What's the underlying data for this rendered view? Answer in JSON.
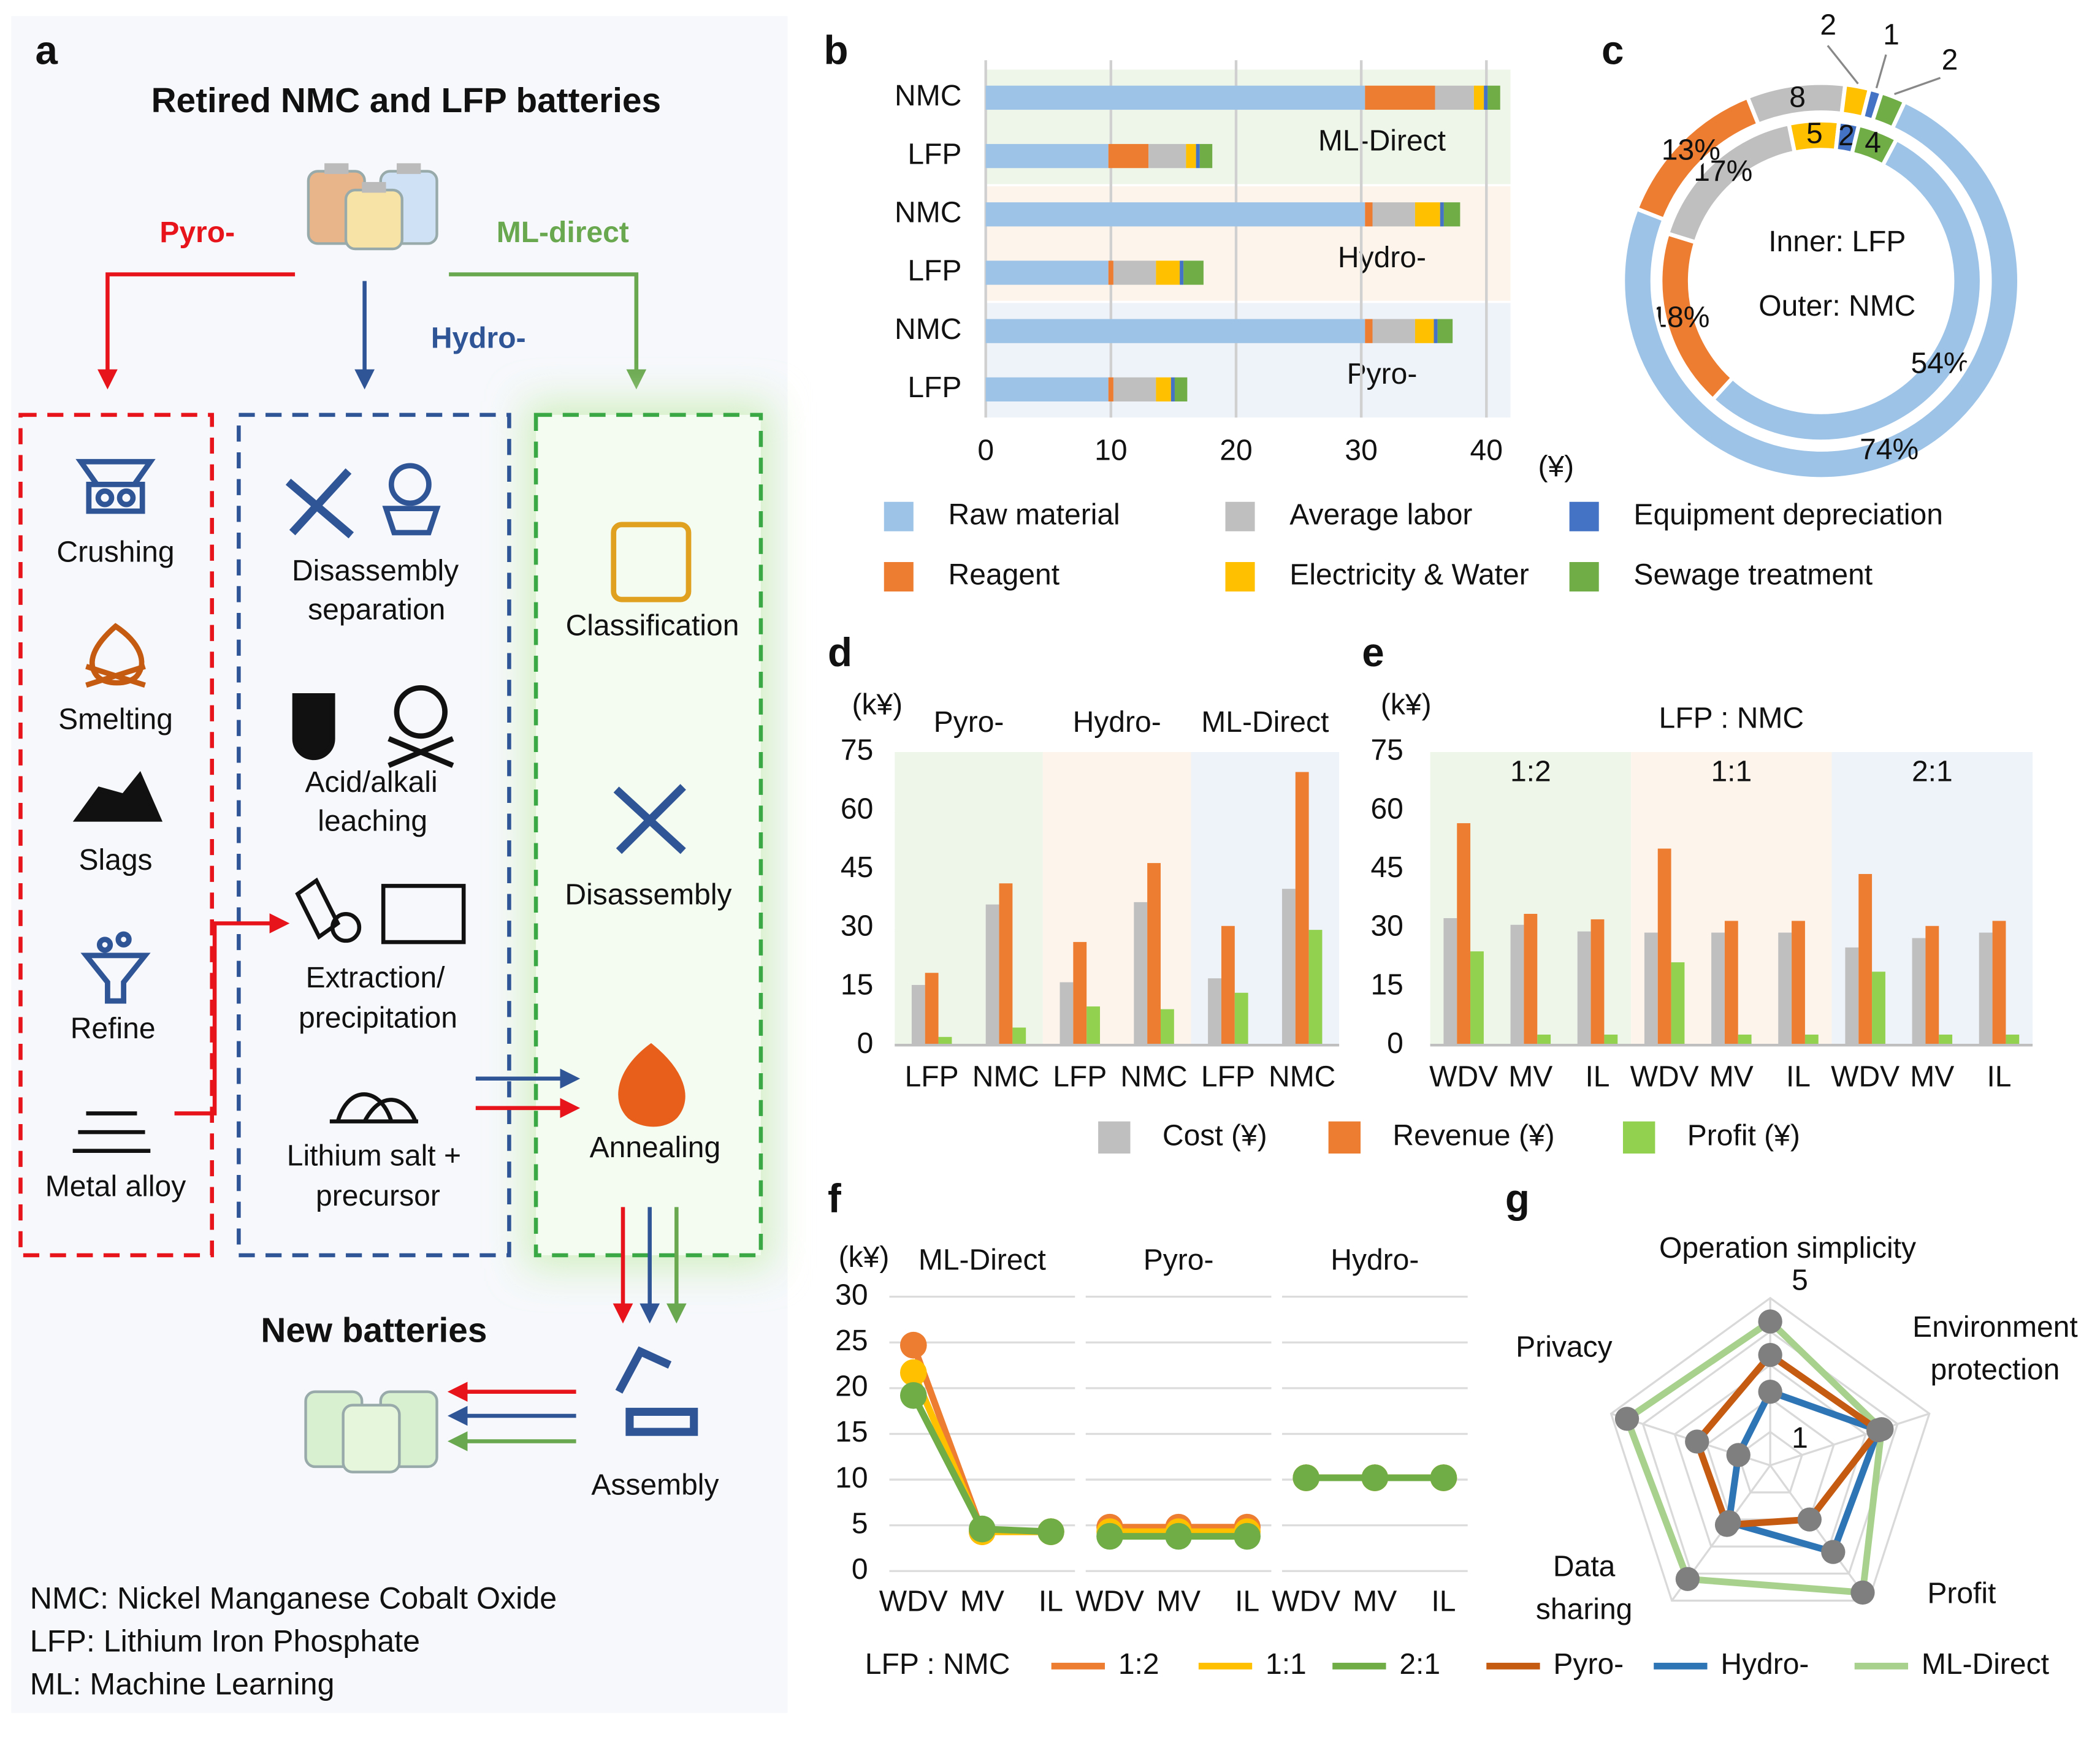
{
  "figure": {
    "label": "a",
    "title": "Retired NMC and LFP batteries",
    "routes": {
      "pyro": "Pyro-",
      "hydro": "Hydro-",
      "ml": "ML-direct"
    },
    "pyro_steps": [
      "Crushing",
      "Smelting",
      "Slags",
      "Refine",
      "Metal alloy"
    ],
    "hydro_steps": [
      [
        "Disassembly",
        "separation"
      ],
      [
        "Acid/alkali",
        "leaching"
      ],
      [
        "Extraction/",
        "precipitation"
      ],
      [
        "Lithium salt +",
        "precursor"
      ]
    ],
    "ml_steps": [
      "Classification",
      "Disassembly",
      "Annealing"
    ],
    "output": "New batteries",
    "assembly": "Assembly",
    "notes": [
      "NMC: Nickel Manganese Cobalt Oxide",
      "LFP: Lithium Iron Phosphate",
      "ML: Machine Learning"
    ]
  },
  "chart_data": [
    {
      "label": "b",
      "type": "barh",
      "stacked": true,
      "categories": [
        "NMC",
        "LFP",
        "NMC",
        "LFP",
        "NMC",
        "LFP"
      ],
      "groups": [
        {
          "name": "ML-Direct",
          "color": "#eef6ea"
        },
        {
          "name": "Hydro-",
          "color": "#fdf5ec"
        },
        {
          "name": "Pyro-",
          "color": "#eef2f9"
        }
      ],
      "series": [
        {
          "name": "Raw material",
          "color": "#9dc3e6",
          "values": [
            30.3,
            9.8,
            30.3,
            9.8,
            30.3,
            9.8
          ]
        },
        {
          "name": "Reagent",
          "color": "#ed7d31",
          "values": [
            5.6,
            3.2,
            0.6,
            0.4,
            0.6,
            0.4
          ]
        },
        {
          "name": "Average labor",
          "color": "#bfbfbf",
          "values": [
            3.1,
            3.0,
            3.4,
            3.4,
            3.4,
            3.4
          ]
        },
        {
          "name": "Electricity & Water",
          "color": "#ffc000",
          "values": [
            0.8,
            0.8,
            2.0,
            1.9,
            1.5,
            1.2
          ]
        },
        {
          "name": "Equipment depreciation",
          "color": "#4472c4",
          "values": [
            0.3,
            0.3,
            0.3,
            0.3,
            0.3,
            0.3
          ]
        },
        {
          "name": "Sewage treatment",
          "color": "#70ad47",
          "values": [
            1.0,
            1.0,
            1.3,
            1.6,
            1.2,
            1.0
          ]
        }
      ],
      "xlim": [
        0,
        40
      ],
      "xticks": [
        0,
        10,
        20,
        30,
        40
      ],
      "x_unit": "(¥)",
      "grid": true
    },
    {
      "label": "c",
      "type": "donut",
      "colors": [
        "#9dc3e6",
        "#ed7d31",
        "#bfbfbf",
        "#ffc000",
        "#4472c4",
        "#70ad47"
      ],
      "series": [
        {
          "name": "Inner: LFP",
          "ring": "inner",
          "values": [
            54,
            18,
            17,
            5,
            2,
            4
          ],
          "value_labels": [
            "54%",
            "18%",
            "17%",
            "5",
            "2",
            "4"
          ]
        },
        {
          "name": "Outer: NMC",
          "ring": "outer",
          "values": [
            74,
            13,
            8,
            2,
            1,
            2
          ],
          "value_labels": [
            "74%",
            "13%",
            "8",
            "2",
            "1",
            "2"
          ]
        }
      ]
    },
    {
      "label": "d",
      "type": "bar",
      "y_unit": "(k¥)",
      "categories": [
        "LFP",
        "NMC",
        "LFP",
        "NMC",
        "LFP",
        "NMC"
      ],
      "groups": [
        {
          "name": "Pyro-",
          "color": "#eef6ea"
        },
        {
          "name": "Hydro-",
          "color": "#fdf5ec"
        },
        {
          "name": "ML-Direct",
          "color": "#eef2f9"
        }
      ],
      "series": [
        {
          "name": "Cost (¥)",
          "color": "#bfbfbf",
          "values": [
            15.4,
            36,
            16.1,
            36.6,
            17.1,
            40
          ]
        },
        {
          "name": "Revenue (¥)",
          "color": "#ed7d31",
          "values": [
            18.5,
            41.4,
            26.4,
            46.6,
            30.5,
            69.9
          ]
        },
        {
          "name": "Profit (¥)",
          "color": "#92d050",
          "values": [
            2.1,
            4.5,
            9.9,
            9.2,
            13.4,
            29.5
          ]
        }
      ],
      "ylim": [
        0,
        75
      ],
      "yticks": [
        0,
        15,
        30,
        45,
        60,
        75
      ],
      "legend": "bottom"
    },
    {
      "label": "e",
      "type": "bar",
      "title": "LFP : NMC",
      "y_unit": "(k¥)",
      "categories": [
        "WDV",
        "MV",
        "IL",
        "WDV",
        "MV",
        "IL",
        "WDV",
        "MV",
        "IL"
      ],
      "groups": [
        {
          "name": "1:2",
          "color": "#eef6ea"
        },
        {
          "name": "1:1",
          "color": "#fdf5ec"
        },
        {
          "name": "2:1",
          "color": "#eef2f9"
        }
      ],
      "series": [
        {
          "color": "#bfbfbf",
          "values": [
            32.5,
            30.8,
            29.1,
            28.8,
            28.8,
            28.8,
            25,
            27.4,
            28.8
          ]
        },
        {
          "color": "#ed7d31",
          "values": [
            56.8,
            33.6,
            32.2,
            50.3,
            31.8,
            31.8,
            43.8,
            30.5,
            31.8
          ]
        },
        {
          "color": "#92d050",
          "values": [
            24,
            2.7,
            2.7,
            21.2,
            2.7,
            2.7,
            18.8,
            2.7,
            2.7
          ]
        }
      ],
      "ylim": [
        0,
        75
      ],
      "yticks": [
        0,
        15,
        30,
        45,
        60,
        75
      ]
    },
    {
      "label": "f",
      "type": "line",
      "y_unit": "(k¥)",
      "categories": [
        "WDV",
        "MV",
        "IL",
        "WDV",
        "MV",
        "IL",
        "WDV",
        "MV",
        "IL"
      ],
      "groups": [
        {
          "name": "ML-Direct"
        },
        {
          "name": "Pyro-"
        },
        {
          "name": "Hydro-"
        }
      ],
      "legend_title": "LFP : NMC",
      "series": [
        {
          "name": "1:2",
          "color": "#ed7d31",
          "values": [
            24.7,
            4.3,
            4.3,
            4.8,
            4.8,
            4.8,
            10.2,
            10.2,
            10.2
          ]
        },
        {
          "name": "1:1",
          "color": "#ffc000",
          "values": [
            21.7,
            4.3,
            4.3,
            4.3,
            4.3,
            4.3,
            10.2,
            10.2,
            10.2
          ]
        },
        {
          "name": "2:1",
          "color": "#70ad47",
          "values": [
            19.2,
            4.6,
            4.3,
            3.8,
            3.8,
            3.8,
            10.2,
            10.2,
            10.2
          ]
        }
      ],
      "ylim": [
        0,
        30
      ],
      "yticks": [
        0,
        5,
        10,
        15,
        20,
        25,
        30
      ],
      "grid": true
    },
    {
      "label": "g",
      "type": "radar",
      "categories": [
        [
          "Operation simplicity"
        ],
        [
          "Environment",
          "protection"
        ],
        [
          "Profit"
        ],
        [
          "Data",
          "sharing"
        ],
        [
          "Privacy"
        ]
      ],
      "rlim": [
        0,
        5
      ],
      "rticks": [
        1,
        5
      ],
      "series": [
        {
          "name": "Pyro-",
          "color": "#c55a11",
          "values": [
            3.3,
            3.4,
            2,
            2.2,
            2.3
          ]
        },
        {
          "name": "Hydro-",
          "color": "#2e75b6",
          "values": [
            2.2,
            3.4,
            3.2,
            2.1,
            1
          ]
        },
        {
          "name": "ML-Direct",
          "color": "#a9d18e",
          "values": [
            4.3,
            3.5,
            4.7,
            4.2,
            4.5
          ]
        }
      ]
    }
  ]
}
